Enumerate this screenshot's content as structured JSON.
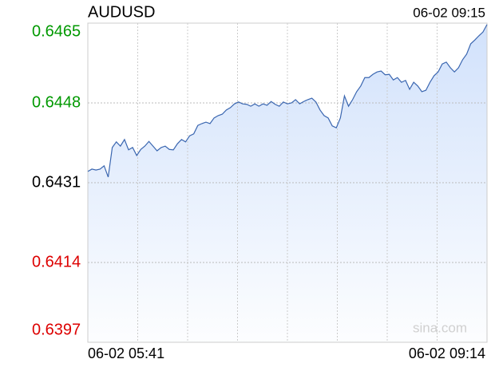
{
  "chart_data": {
    "type": "line",
    "title": "AUDUSD",
    "timestamp": "06-02 09:15",
    "watermark": "sina.com",
    "x_end_labels": [
      "06-02 05:41",
      "06-02 09:14"
    ],
    "ylim": [
      0.6397,
      0.6465
    ],
    "yticks": [
      0.6465,
      0.6448,
      0.6431,
      0.6414,
      0.6397
    ],
    "ytick_colors": [
      "#009900",
      "#009900",
      "#000000",
      "#dd0000",
      "#dd0000"
    ],
    "color": "#3a66b0",
    "area_color": "#cfe0fb",
    "grid": true,
    "x_divisions": 8,
    "values": [
      0.64334,
      0.64339,
      0.64337,
      0.64339,
      0.64346,
      0.64322,
      0.64385,
      0.64397,
      0.64388,
      0.64402,
      0.6438,
      0.64385,
      0.64368,
      0.64381,
      0.64388,
      0.64398,
      0.64388,
      0.64378,
      0.64385,
      0.64388,
      0.64381,
      0.6438,
      0.64393,
      0.64402,
      0.64397,
      0.6441,
      0.64414,
      0.64432,
      0.64436,
      0.64439,
      0.64436,
      0.64448,
      0.64453,
      0.64456,
      0.64465,
      0.6447,
      0.64478,
      0.64482,
      0.64478,
      0.64477,
      0.64473,
      0.64478,
      0.64473,
      0.64478,
      0.64475,
      0.64483,
      0.64477,
      0.64473,
      0.64482,
      0.64478,
      0.6448,
      0.64487,
      0.64478,
      0.64483,
      0.64487,
      0.6449,
      0.64482,
      0.64465,
      0.64453,
      0.64448,
      0.64431,
      0.64427,
      0.64448,
      0.64495,
      0.64473,
      0.64487,
      0.64504,
      0.64516,
      0.64534,
      0.64534,
      0.64541,
      0.64546,
      0.64548,
      0.6454,
      0.64541,
      0.64529,
      0.64534,
      0.64524,
      0.64528,
      0.64509,
      0.64524,
      0.64516,
      0.64504,
      0.64507,
      0.64524,
      0.64538,
      0.64546,
      0.64563,
      0.64567,
      0.64555,
      0.64546,
      0.64555,
      0.64572,
      0.64584,
      0.64606,
      0.64614,
      0.64623,
      0.64631,
      0.64647
    ]
  }
}
